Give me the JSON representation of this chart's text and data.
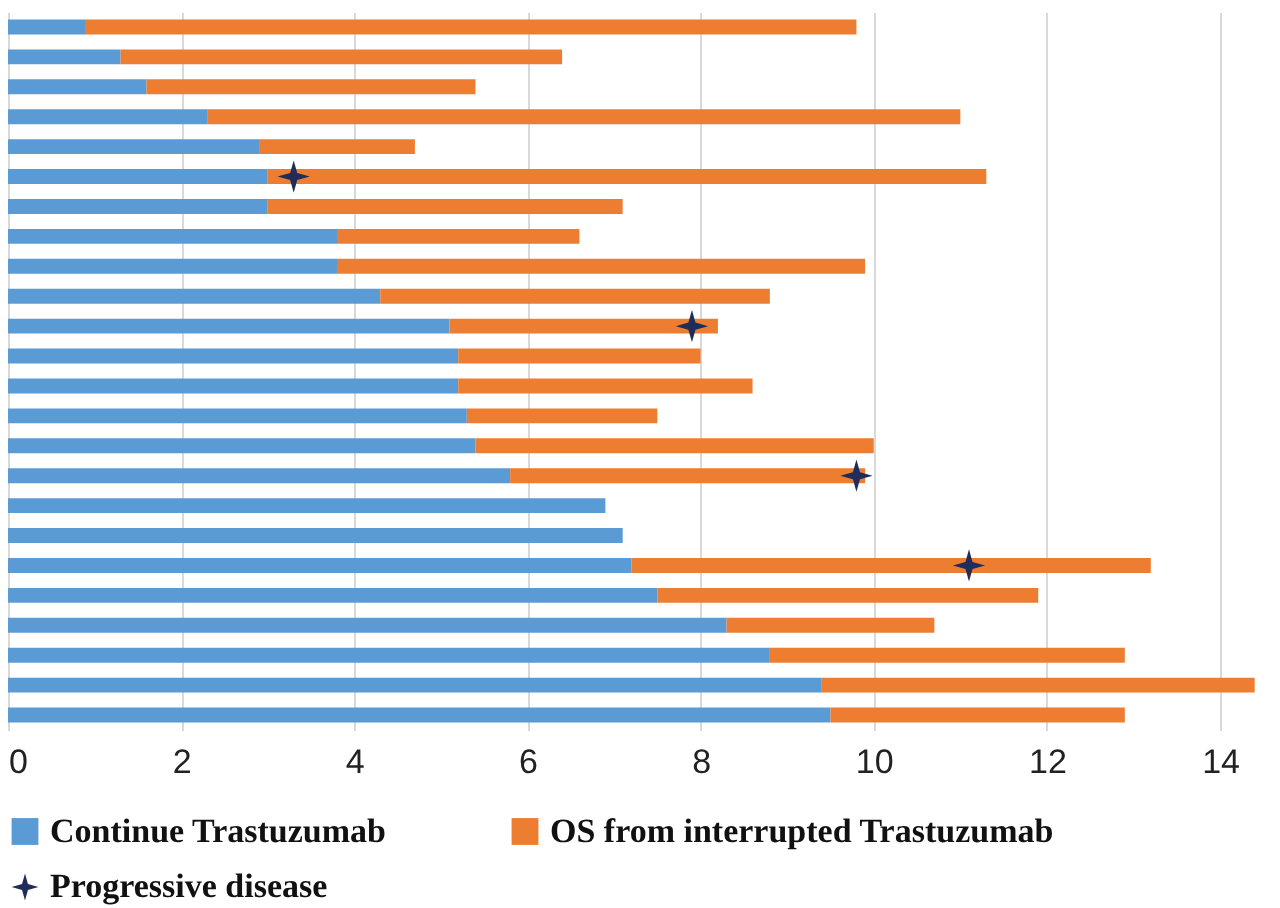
{
  "chart_data": {
    "type": "bar",
    "orientation": "horizontal",
    "stacked": true,
    "categories": [
      null,
      null,
      null,
      null,
      null,
      null,
      null,
      null,
      null,
      null,
      null,
      null,
      null,
      null,
      null,
      null,
      null,
      null,
      null,
      null,
      null,
      null,
      null,
      null
    ],
    "series": [
      {
        "name": "Continue Trastuzumab",
        "color": "#5b9bd5",
        "values": [
          0.9,
          1.3,
          1.6,
          2.3,
          2.9,
          3.0,
          3.0,
          3.8,
          3.8,
          4.3,
          5.1,
          5.2,
          5.2,
          5.3,
          5.4,
          5.8,
          6.9,
          7.1,
          7.2,
          7.5,
          8.3,
          8.8,
          9.4,
          9.5
        ]
      },
      {
        "name": "OS from interrupted Trastuzumab",
        "color": "#ed7d31",
        "values": [
          8.9,
          5.1,
          3.8,
          8.7,
          1.8,
          8.3,
          4.1,
          2.8,
          6.1,
          4.5,
          3.1,
          2.8,
          3.4,
          2.2,
          4.6,
          4.1,
          null,
          null,
          6.0,
          4.4,
          2.4,
          4.1,
          5.0,
          3.4
        ]
      },
      {
        "name": "Progressive disease",
        "type": "scatter",
        "marker": "star",
        "color": "#1f2d5a",
        "values": [
          null,
          null,
          null,
          null,
          null,
          3.3,
          null,
          null,
          null,
          null,
          7.9,
          null,
          null,
          null,
          null,
          9.8,
          null,
          null,
          11.1,
          null,
          null,
          null,
          null,
          null
        ]
      }
    ],
    "xlim": [
      0,
      14.6
    ],
    "xticks": [
      0,
      2,
      4,
      6,
      8,
      10,
      12,
      14
    ],
    "grid": "x",
    "legend": "bottom",
    "tick_labels": "x"
  }
}
